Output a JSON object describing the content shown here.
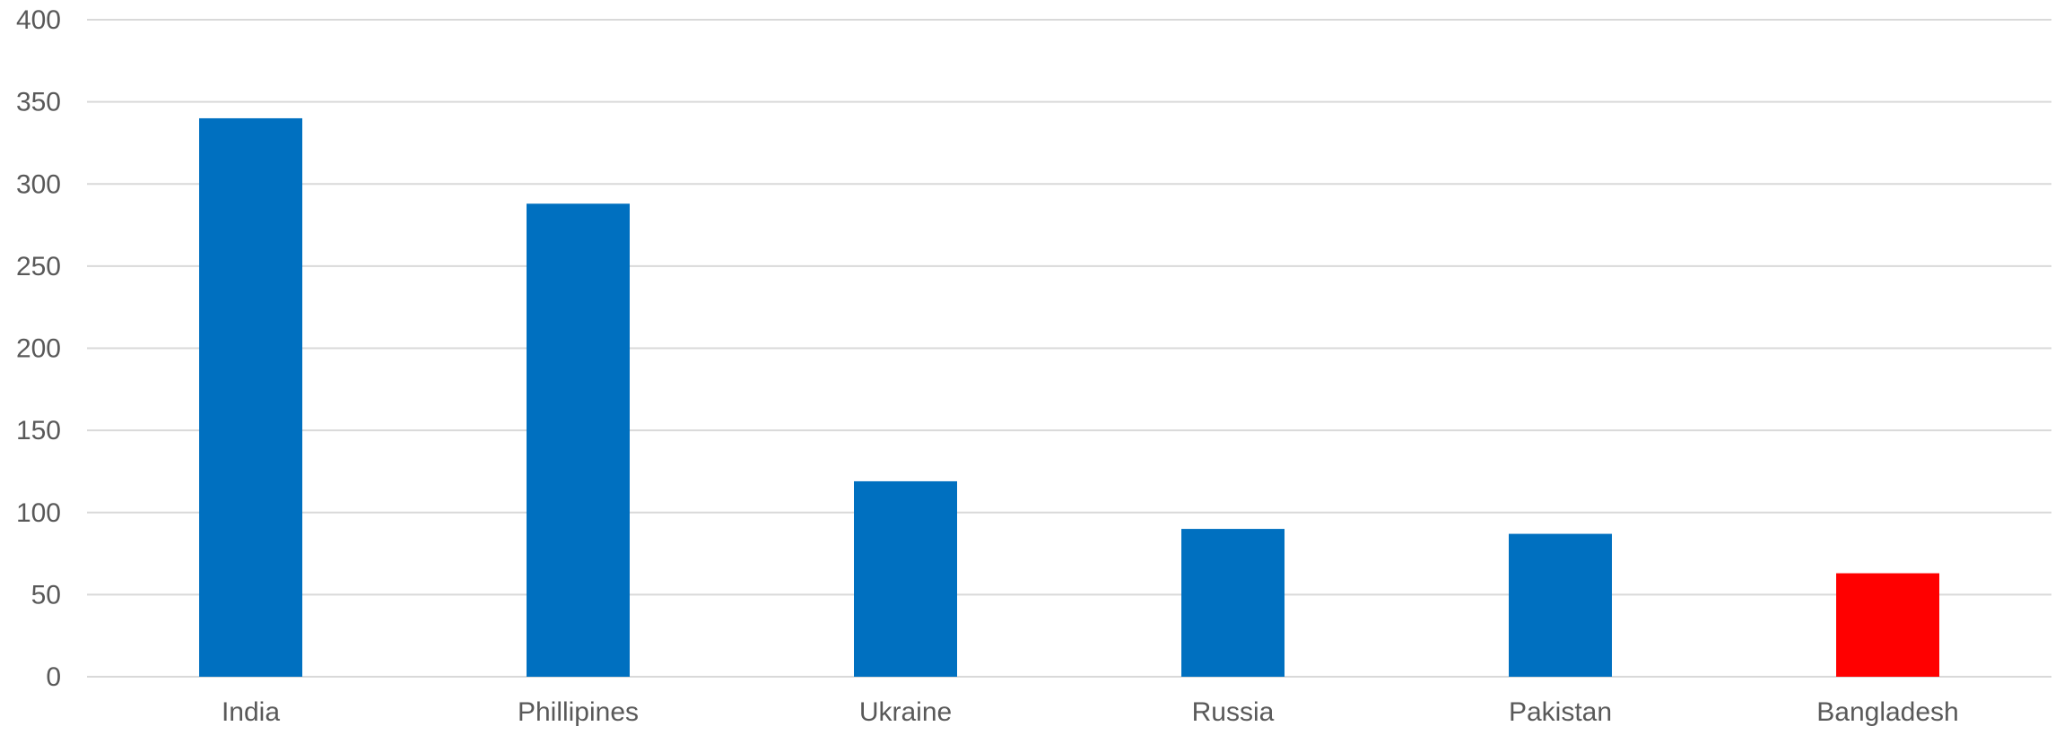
{
  "chart_data": {
    "type": "bar",
    "title": "",
    "xlabel": "",
    "ylabel": "",
    "categories": [
      "India",
      "Phillipines",
      "Ukraine",
      "Russia",
      "Pakistan",
      "Bangladesh"
    ],
    "values": [
      340,
      288,
      119,
      90,
      87,
      63
    ],
    "ylim": [
      0,
      400
    ],
    "yticks": [
      "0",
      "50",
      "100",
      "150",
      "200",
      "250",
      "300",
      "350",
      "400"
    ],
    "grid": true,
    "legend": "none",
    "colors": {
      "default_bar": "#0070C0",
      "highlight_bar": "#FF0000",
      "highlight_category": "Bangladesh",
      "gridline": "#D9D9D9",
      "text": "#595959"
    }
  }
}
